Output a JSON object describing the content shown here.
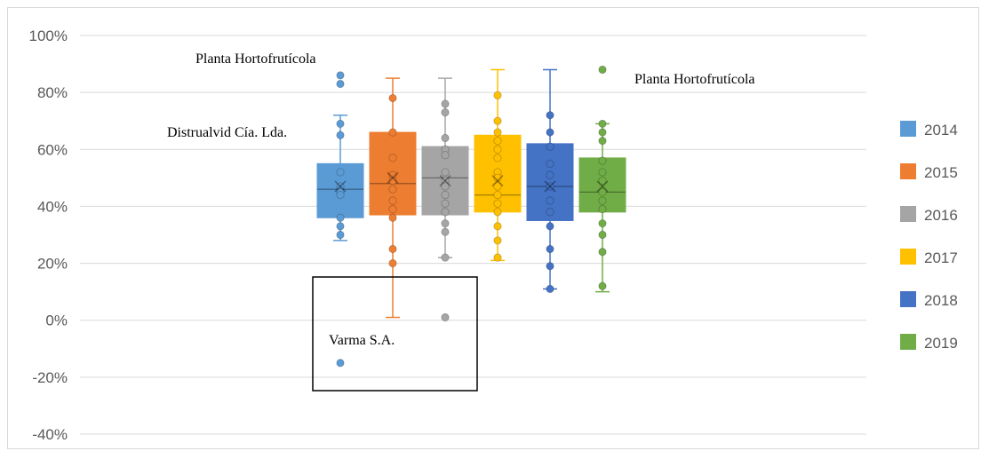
{
  "chart_data": {
    "type": "box",
    "ylim": [
      -40,
      100
    ],
    "yticks": [
      -40,
      -20,
      0,
      20,
      40,
      60,
      80,
      100
    ],
    "ytick_labels": [
      "-40%",
      "-20%",
      "0%",
      "20%",
      "40%",
      "60%",
      "80%",
      "100%"
    ],
    "grid": true,
    "legend_position": "right",
    "series": [
      {
        "name": "2014",
        "color": "#5b9bd5",
        "whisker_low": 28,
        "q1": 36,
        "median": 46,
        "q3": 55,
        "whisker_high": 72,
        "mean": 47,
        "points": [
          86,
          83,
          69,
          65,
          52,
          47,
          45,
          44,
          36,
          33,
          30,
          -15
        ]
      },
      {
        "name": "2015",
        "color": "#ed7d31",
        "whisker_low": 1,
        "q1": 37,
        "median": 48,
        "q3": 66,
        "whisker_high": 85,
        "mean": 50,
        "points": [
          78,
          66,
          57,
          51,
          49,
          46,
          42,
          39,
          36,
          25,
          20
        ]
      },
      {
        "name": "2016",
        "color": "#a5a5a5",
        "whisker_low": 22,
        "q1": 37,
        "median": 50,
        "q3": 61,
        "whisker_high": 85,
        "mean": 49,
        "points": [
          76,
          73,
          64,
          60,
          58,
          52,
          49,
          47,
          44,
          41,
          38,
          34,
          31,
          22,
          1
        ]
      },
      {
        "name": "2017",
        "color": "#ffc000",
        "whisker_low": 21,
        "q1": 38,
        "median": 44,
        "q3": 65,
        "whisker_high": 88,
        "mean": 49,
        "points": [
          79,
          70,
          66,
          63,
          60,
          57,
          52,
          50,
          47,
          44,
          41,
          38,
          33,
          28,
          22
        ]
      },
      {
        "name": "2018",
        "color": "#4472c4",
        "whisker_low": 11,
        "q1": 35,
        "median": 47,
        "q3": 62,
        "whisker_high": 88,
        "mean": 47,
        "points": [
          72,
          66,
          61,
          55,
          51,
          47,
          42,
          38,
          33,
          25,
          19,
          11
        ]
      },
      {
        "name": "2019",
        "color": "#70ad47",
        "whisker_low": 10,
        "q1": 38,
        "median": 45,
        "q3": 57,
        "whisker_high": 69,
        "mean": 47,
        "points": [
          88,
          69,
          66,
          63,
          56,
          52,
          49,
          45,
          42,
          39,
          34,
          30,
          24,
          12
        ]
      }
    ],
    "annotations": [
      {
        "text": "Planta Hortofrutícola"
      },
      {
        "text": "Planta Hortofrutícola"
      },
      {
        "text": "Distrualvid Cía. Lda."
      },
      {
        "text": "Varma S.A."
      }
    ]
  }
}
